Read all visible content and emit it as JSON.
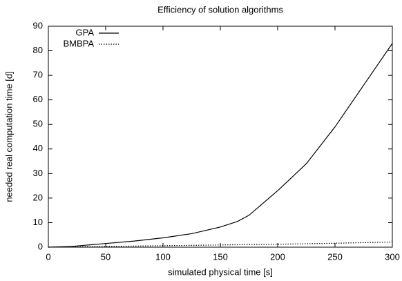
{
  "chart_data": {
    "type": "line",
    "title": "Efficiency of solution algorithms",
    "xlabel": "simulated physical time [s]",
    "ylabel": "needed real computation time [d]",
    "xlim": [
      0,
      300
    ],
    "xticks": [
      0,
      50,
      100,
      150,
      200,
      250,
      300
    ],
    "ylim": [
      0,
      90
    ],
    "yticks": [
      0,
      10,
      20,
      30,
      40,
      50,
      60,
      70,
      80,
      90
    ],
    "legend": "top-left",
    "series": [
      {
        "name": "GPA",
        "color": "#000000",
        "style": "solid",
        "x": [
          0,
          20,
          50,
          75,
          100,
          125,
          150,
          165,
          175,
          185,
          200,
          225,
          250,
          275,
          300
        ],
        "values": [
          0,
          0.3,
          1.5,
          2.5,
          3.8,
          5.5,
          8.2,
          10.5,
          13,
          17,
          23,
          34,
          49,
          66,
          83
        ]
      },
      {
        "name": "BMBPA",
        "color": "#000000",
        "style": "dotted",
        "x": [
          0,
          50,
          100,
          150,
          200,
          250,
          300
        ],
        "values": [
          0,
          0.3,
          0.6,
          0.9,
          1.2,
          1.6,
          2.1
        ]
      }
    ]
  }
}
